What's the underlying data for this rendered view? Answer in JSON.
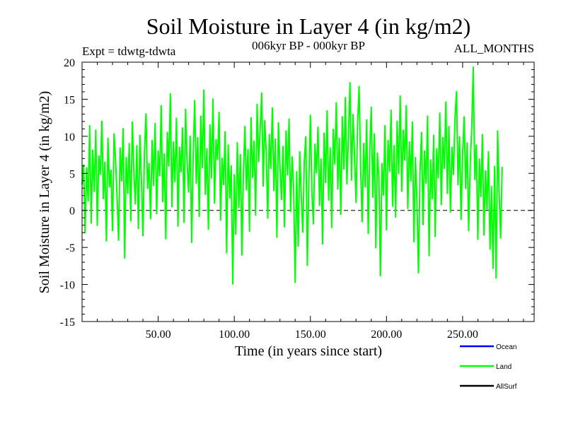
{
  "chart_data": {
    "type": "line",
    "title": "Soil Moisture in Layer 4 (in kg/m2)",
    "subtitle_left": "Expt = tdwtg-tdwta",
    "subtitle_center": "006kyr BP - 000kyr BP",
    "subtitle_right": "ALL_MONTHS",
    "xlabel": "Time (in years since start)",
    "ylabel": "Soil Moisture in Layer 4 (in kg/m2)",
    "xlim": [
      0,
      297
    ],
    "ylim": [
      -15,
      20
    ],
    "xticks": [
      50,
      100,
      150,
      200,
      250
    ],
    "xtick_labels": [
      "50.00",
      "100.00",
      "150.00",
      "200.00",
      "250.00"
    ],
    "yticks": [
      -15,
      -10,
      -5,
      0,
      5,
      10,
      15,
      20
    ],
    "ytick_labels": [
      "-15",
      "-10",
      "-5",
      "0",
      "5",
      "10",
      "15",
      "20"
    ],
    "zero_line": true,
    "legend": [
      {
        "name": "Ocean",
        "color": "#0000ff"
      },
      {
        "name": "Land",
        "color": "#00ff00"
      },
      {
        "name": "AllSurf",
        "color": "#000000"
      }
    ],
    "series": [
      {
        "name": "Land",
        "color": "#00ff00",
        "x_start": 0,
        "x_step": 1,
        "values": [
          3.5,
          6.2,
          -3.1,
          5.8,
          1.2,
          11.5,
          -1.8,
          8.2,
          2.5,
          10.9,
          -2.1,
          7.4,
          4.8,
          12.1,
          1.5,
          6.6,
          -4.2,
          9.8,
          3.1,
          5.5,
          -2.8,
          10.4,
          6.9,
          1.8,
          -4.1,
          8.5,
          3.9,
          11.1,
          -6.5,
          7.2,
          2.2,
          9.1,
          -1.5,
          12.0,
          5.4,
          0.8,
          8.8,
          -2.5,
          10.2,
          4.1,
          -3.5,
          7.9,
          13.1,
          2.9,
          6.4,
          -1.2,
          9.5,
          3.3,
          11.8,
          -0.5,
          8.1,
          4.6,
          14.2,
          1.1,
          7.7,
          -3.9,
          10.6,
          5.9,
          15.8,
          0.4,
          9.3,
          3.8,
          12.5,
          -2.2,
          8.6,
          5.1,
          11.2,
          -1.7,
          13.7,
          6.3,
          2.4,
          10.1,
          -4.4,
          7.5,
          14.9,
          3.6,
          9.9,
          -0.9,
          12.8,
          5.7,
          16.3,
          2.1,
          8.4,
          -2.6,
          11.6,
          4.3,
          15.1,
          0.9,
          9.6,
          6.8,
          13.3,
          -1.4,
          7.1,
          3.4,
          10.7,
          -5.8,
          8.9,
          1.6,
          6.1,
          -10.0,
          4.9,
          -3.3,
          9.2,
          0.3,
          7.6,
          -6.1,
          5.2,
          11.4,
          2.7,
          8.3,
          -2.9,
          12.6,
          4.4,
          9.4,
          -0.7,
          14.4,
          6.5,
          10.9,
          15.9,
          3.2,
          12.2,
          7.8,
          -1.1,
          10.3,
          5.6,
          13.9,
          2.6,
          9.7,
          -3.7,
          11.9,
          6.0,
          1.4,
          8.7,
          -2.3,
          10.8,
          4.7,
          12.4,
          -0.2,
          7.3,
          3.0,
          -9.8,
          5.3,
          -4.9,
          8.0,
          1.9,
          -3.0,
          6.7,
          10.0,
          -7.5,
          4.2,
          12.9,
          2.3,
          -1.9,
          9.0,
          5.0,
          11.3,
          0.6,
          7.0,
          -4.6,
          10.5,
          3.7,
          13.5,
          1.3,
          8.5,
          -2.4,
          11.0,
          6.2,
          14.6,
          2.8,
          9.8,
          -0.6,
          12.7,
          5.5,
          15.3,
          3.5,
          10.1,
          17.3,
          4.0,
          13.0,
          7.4,
          1.0,
          11.7,
          16.8,
          5.8,
          -1.6,
          9.1,
          3.1,
          12.3,
          -3.2,
          8.2,
          14.0,
          1.7,
          10.4,
          -5.1,
          7.8,
          4.5,
          -8.9,
          6.4,
          2.0,
          11.5,
          -2.7,
          9.5,
          5.2,
          13.6,
          0.5,
          8.8,
          -1.0,
          12.1,
          4.9,
          15.5,
          2.5,
          10.9,
          6.7,
          14.2,
          0.2,
          9.3,
          3.9,
          12.0,
          -4.3,
          7.2,
          1.2,
          -8.5,
          5.0,
          10.6,
          -2.0,
          8.1,
          3.6,
          12.8,
          -6.2,
          6.9,
          1.5,
          10.2,
          -3.6,
          8.4,
          4.3,
          13.2,
          0.7,
          9.9,
          5.6,
          14.7,
          2.2,
          11.4,
          -0.3,
          8.6,
          4.8,
          12.5,
          16.1,
          3.4,
          10.0,
          -1.3,
          7.5,
          12.7,
          2.9,
          9.2,
          -2.8,
          6.3,
          11.1,
          19.4,
          4.1,
          8.9,
          -4.0,
          7.0,
          1.8,
          10.3,
          -3.4,
          5.4,
          0.1,
          8.0,
          -5.3,
          3.3,
          -7.9,
          6.0,
          -9.2,
          10.8,
          2.4,
          -3.8,
          5.9
        ]
      }
    ]
  }
}
